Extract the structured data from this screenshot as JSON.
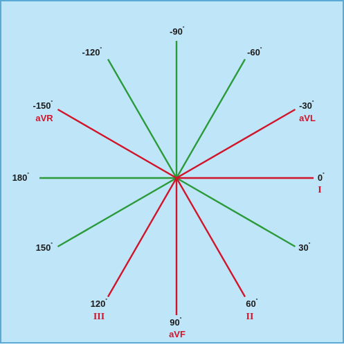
{
  "colors": {
    "background": "#bfe5f8",
    "border": "#5aaad8",
    "axis_green": "#2a9a3a",
    "lead_red": "#d0152a",
    "label_dark": "#1a1a1a"
  },
  "axes": [
    {
      "angle": -90,
      "label": "-90",
      "degree_mark": "˚",
      "lead": "",
      "type": "axis"
    },
    {
      "angle": -60,
      "label": "-60",
      "degree_mark": "˚",
      "lead": "",
      "type": "axis"
    },
    {
      "angle": -30,
      "label": "-30",
      "degree_mark": "˚",
      "lead": "aVL",
      "type": "lead"
    },
    {
      "angle": 0,
      "label": "0",
      "degree_mark": "˚",
      "lead": "I",
      "type": "lead"
    },
    {
      "angle": 30,
      "label": "30",
      "degree_mark": "˚",
      "lead": "",
      "type": "axis"
    },
    {
      "angle": 60,
      "label": "60",
      "degree_mark": "˚",
      "lead": "II",
      "type": "lead"
    },
    {
      "angle": 90,
      "label": "90",
      "degree_mark": "˚",
      "lead": "aVF",
      "type": "lead"
    },
    {
      "angle": 120,
      "label": "120",
      "degree_mark": "˚",
      "lead": "III",
      "type": "lead"
    },
    {
      "angle": 150,
      "label": "150",
      "degree_mark": "˚",
      "lead": "",
      "type": "axis"
    },
    {
      "angle": 180,
      "label": "180",
      "degree_mark": "˚",
      "lead": "",
      "type": "axis"
    },
    {
      "angle": -150,
      "label": "-150",
      "degree_mark": "˚",
      "lead": "aVR",
      "type": "lead"
    },
    {
      "angle": -120,
      "label": "-120",
      "degree_mark": "˚",
      "lead": "",
      "type": "axis"
    }
  ]
}
